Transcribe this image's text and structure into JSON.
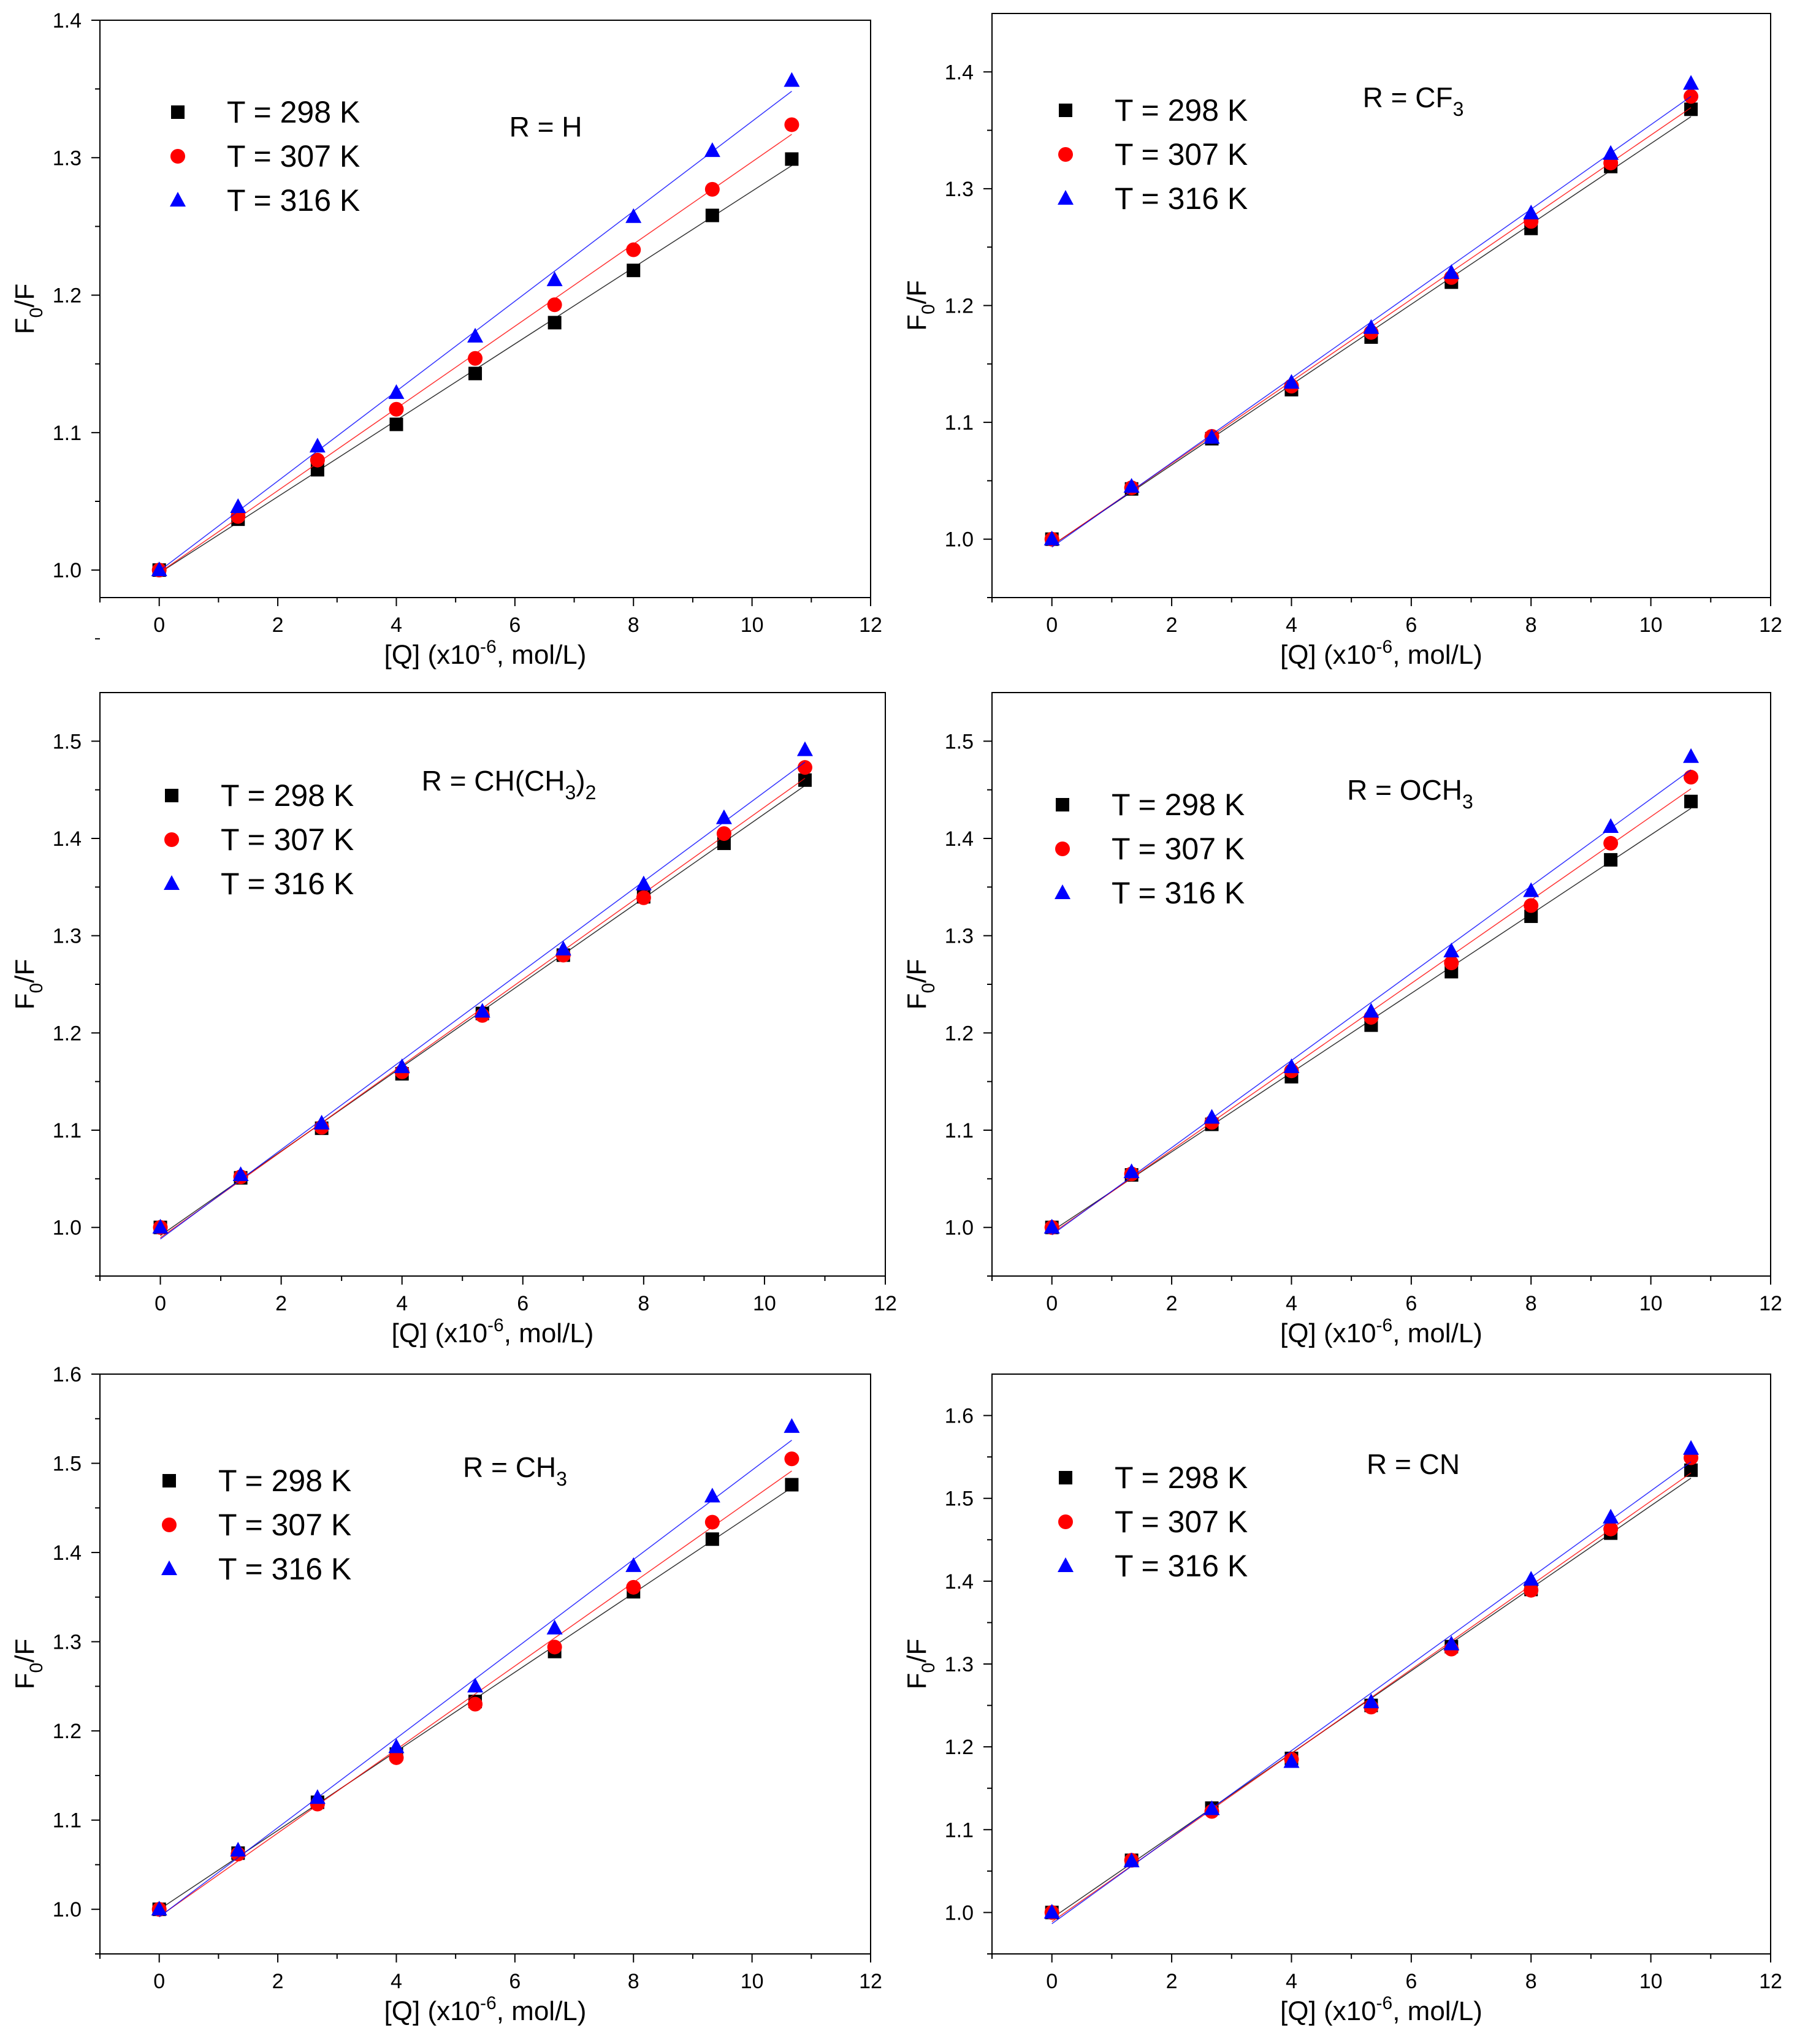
{
  "axis_labels": {
    "x_main": "[Q] (x10",
    "x_sup": "-6",
    "x_tail": ", mol/L)",
    "y_main": "F",
    "y_sub": "0",
    "y_tail": "/F"
  },
  "legend_labels": [
    "T = 298 K",
    "T = 307 K",
    "T = 316 K"
  ],
  "colors": {
    "T298": "#000000",
    "T307": "#ff0000",
    "T316": "#0000ff"
  },
  "chart_data": [
    {
      "type": "scatter",
      "title_parts": [
        "R = H"
      ],
      "xlim": [
        -1,
        12
      ],
      "ylim": [
        0.98,
        1.4
      ],
      "xticks": [
        "0",
        "2",
        "4",
        "6",
        "8",
        "10",
        "12"
      ],
      "yticks": [
        "1.0",
        "1.1",
        "1.2",
        "1.3",
        "1.4"
      ],
      "x": [
        0,
        1.33,
        2.67,
        4.0,
        5.33,
        6.67,
        8.0,
        9.33,
        10.67
      ],
      "series": [
        {
          "name": "T = 298 K",
          "values": [
            1.0,
            1.037,
            1.073,
            1.106,
            1.143,
            1.18,
            1.218,
            1.258,
            1.299
          ]
        },
        {
          "name": "T = 307 K",
          "values": [
            1.0,
            1.039,
            1.08,
            1.117,
            1.154,
            1.193,
            1.233,
            1.277,
            1.324
          ]
        },
        {
          "name": "T = 316 K",
          "values": [
            1.0,
            1.046,
            1.09,
            1.129,
            1.17,
            1.211,
            1.257,
            1.305,
            1.356
          ]
        }
      ]
    },
    {
      "type": "scatter",
      "title_parts": [
        "R = CF",
        "3"
      ],
      "xlim": [
        -1,
        12
      ],
      "ylim": [
        0.95,
        1.45
      ],
      "xticks": [
        "0",
        "2",
        "4",
        "6",
        "8",
        "10",
        "12"
      ],
      "yticks": [
        "1.0",
        "1.1",
        "1.2",
        "1.3",
        "1.4"
      ],
      "x": [
        0,
        1.33,
        2.67,
        4.0,
        5.33,
        6.67,
        8.0,
        9.33,
        10.67
      ],
      "series": [
        {
          "name": "T = 298 K",
          "values": [
            1.0,
            1.043,
            1.086,
            1.128,
            1.173,
            1.22,
            1.266,
            1.319,
            1.368
          ]
        },
        {
          "name": "T = 307 K",
          "values": [
            1.0,
            1.044,
            1.088,
            1.131,
            1.177,
            1.224,
            1.272,
            1.322,
            1.379
          ]
        },
        {
          "name": "T = 316 K",
          "values": [
            1.0,
            1.045,
            1.087,
            1.134,
            1.181,
            1.228,
            1.279,
            1.33,
            1.39
          ]
        }
      ]
    },
    {
      "type": "scatter",
      "title_parts": [
        "R = CH(CH",
        "3",
        ")",
        "2"
      ],
      "xlim": [
        -1,
        12
      ],
      "ylim": [
        0.95,
        1.55
      ],
      "xticks": [
        "0",
        "2",
        "4",
        "6",
        "8",
        "10",
        "12"
      ],
      "yticks": [
        "1.0",
        "1.1",
        "1.2",
        "1.3",
        "1.4",
        "1.5"
      ],
      "x": [
        0,
        1.33,
        2.67,
        4.0,
        5.33,
        6.67,
        8.0,
        9.33,
        10.67
      ],
      "series": [
        {
          "name": "T = 298 K",
          "values": [
            1.0,
            1.051,
            1.102,
            1.158,
            1.22,
            1.28,
            1.34,
            1.395,
            1.46
          ]
        },
        {
          "name": "T = 307 K",
          "values": [
            1.0,
            1.052,
            1.103,
            1.16,
            1.218,
            1.28,
            1.339,
            1.405,
            1.473
          ]
        },
        {
          "name": "T = 316 K",
          "values": [
            1.0,
            1.054,
            1.107,
            1.165,
            1.222,
            1.286,
            1.353,
            1.421,
            1.491
          ]
        }
      ]
    },
    {
      "type": "scatter",
      "title_parts": [
        "R = OCH",
        "3"
      ],
      "xlim": [
        -1,
        12
      ],
      "ylim": [
        0.95,
        1.55
      ],
      "xticks": [
        "0",
        "2",
        "4",
        "6",
        "8",
        "10",
        "12"
      ],
      "yticks": [
        "1.0",
        "1.1",
        "1.2",
        "1.3",
        "1.4",
        "1.5"
      ],
      "x": [
        0,
        1.33,
        2.67,
        4.0,
        5.33,
        6.67,
        8.0,
        9.33,
        10.67
      ],
      "series": [
        {
          "name": "T = 298 K",
          "values": [
            1.0,
            1.054,
            1.106,
            1.155,
            1.208,
            1.263,
            1.32,
            1.378,
            1.438
          ]
        },
        {
          "name": "T = 307 K",
          "values": [
            1.0,
            1.055,
            1.108,
            1.161,
            1.216,
            1.272,
            1.331,
            1.395,
            1.463
          ]
        },
        {
          "name": "T = 316 K",
          "values": [
            1.0,
            1.057,
            1.113,
            1.165,
            1.222,
            1.284,
            1.346,
            1.412,
            1.484
          ]
        }
      ]
    },
    {
      "type": "scatter",
      "title_parts": [
        "R = CH",
        "3"
      ],
      "xlim": [
        -1,
        12
      ],
      "ylim": [
        0.95,
        1.6
      ],
      "xticks": [
        "0",
        "2",
        "4",
        "6",
        "8",
        "10",
        "12"
      ],
      "yticks": [
        "1.0",
        "1.1",
        "1.2",
        "1.3",
        "1.4",
        "1.5",
        "1.6"
      ],
      "x": [
        0,
        1.33,
        2.67,
        4.0,
        5.33,
        6.67,
        8.0,
        9.33,
        10.67
      ],
      "series": [
        {
          "name": "T = 298 K",
          "values": [
            1.0,
            1.063,
            1.12,
            1.174,
            1.233,
            1.289,
            1.356,
            1.415,
            1.476
          ]
        },
        {
          "name": "T = 307 K",
          "values": [
            1.0,
            1.062,
            1.118,
            1.17,
            1.23,
            1.294,
            1.361,
            1.434,
            1.505
          ]
        },
        {
          "name": "T = 316 K",
          "values": [
            1.0,
            1.066,
            1.125,
            1.182,
            1.25,
            1.315,
            1.385,
            1.463,
            1.541
          ]
        }
      ]
    },
    {
      "type": "scatter",
      "title_parts": [
        "R = CN"
      ],
      "xlim": [
        -1,
        12
      ],
      "ylim": [
        0.95,
        1.65
      ],
      "xticks": [
        "0",
        "2",
        "4",
        "6",
        "8",
        "10",
        "12"
      ],
      "yticks": [
        "1.0",
        "1.1",
        "1.2",
        "1.3",
        "1.4",
        "1.5",
        "1.6"
      ],
      "x": [
        0,
        1.33,
        2.67,
        4.0,
        5.33,
        6.67,
        8.0,
        9.33,
        10.67
      ],
      "series": [
        {
          "name": "T = 298 K",
          "values": [
            1.0,
            1.063,
            1.126,
            1.186,
            1.25,
            1.321,
            1.39,
            1.458,
            1.534
          ]
        },
        {
          "name": "T = 307 K",
          "values": [
            1.0,
            1.063,
            1.122,
            1.185,
            1.248,
            1.318,
            1.389,
            1.463,
            1.549
          ]
        },
        {
          "name": "T = 316 K",
          "values": [
            1.0,
            1.062,
            1.125,
            1.182,
            1.254,
            1.324,
            1.402,
            1.477,
            1.56
          ]
        }
      ]
    }
  ]
}
